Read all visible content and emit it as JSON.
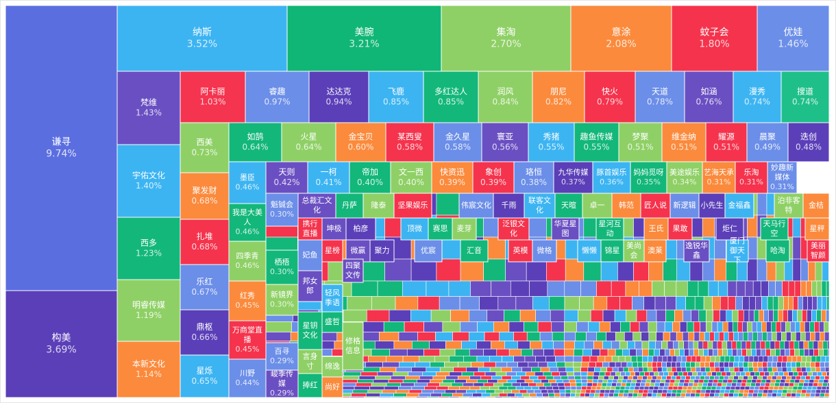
{
  "chart_data": {
    "type": "treemap",
    "tiles": [
      {
        "name": "谦寻",
        "value": 9.74,
        "value_label": "9.74%",
        "color": "#5b6ee0"
      },
      {
        "name": "构美",
        "value": 3.69,
        "value_label": "3.69%",
        "color": "#5b3fb8"
      },
      {
        "name": "纳斯",
        "value": 3.52,
        "value_label": "3.52%",
        "color": "#3cb4f2"
      },
      {
        "name": "美腕",
        "value": 3.21,
        "value_label": "3.21%",
        "color": "#10b675"
      },
      {
        "name": "集淘",
        "value": 2.7,
        "value_label": "2.70%",
        "color": "#8fd066"
      },
      {
        "name": "意涂",
        "value": 2.08,
        "value_label": "2.08%",
        "color": "#fb8a3c"
      },
      {
        "name": "蚊子会",
        "value": 1.8,
        "value_label": "1.80%",
        "color": "#f5334d"
      },
      {
        "name": "优娃",
        "value": 1.46,
        "value_label": "1.46%",
        "color": "#6b8ee8"
      },
      {
        "name": "梵维",
        "value": 1.43,
        "value_label": "1.43%",
        "color": "#6a4fc2"
      },
      {
        "name": "宇佑文化",
        "value": 1.4,
        "value_label": "1.40%",
        "color": "#3cb4f2"
      },
      {
        "name": "西多",
        "value": 1.23,
        "value_label": "1.23%",
        "color": "#13b77a"
      },
      {
        "name": "明睿传媒",
        "value": 1.19,
        "value_label": "1.19%",
        "color": "#8fd066"
      },
      {
        "name": "本新文化",
        "value": 1.14,
        "value_label": "1.14%",
        "color": "#fb8a3c"
      },
      {
        "name": "阿卡丽",
        "value": 1.03,
        "value_label": "1.03%",
        "color": "#f5344f"
      },
      {
        "name": "睿趣",
        "value": 0.97,
        "value_label": "0.97%",
        "color": "#6b8ee8"
      },
      {
        "name": "达达克",
        "value": 0.94,
        "value_label": "0.94%",
        "color": "#5b3fb8"
      },
      {
        "name": "飞鹿",
        "value": 0.85,
        "value_label": "0.85%",
        "color": "#3cb4f2"
      },
      {
        "name": "多红达人",
        "value": 0.85,
        "value_label": "0.85%",
        "color": "#13b77a"
      },
      {
        "name": "润风",
        "value": 0.84,
        "value_label": "0.84%",
        "color": "#8fd066"
      },
      {
        "name": "朋尼",
        "value": 0.82,
        "value_label": "0.82%",
        "color": "#fb8a3c"
      },
      {
        "name": "快火",
        "value": 0.79,
        "value_label": "0.79%",
        "color": "#f5334d"
      },
      {
        "name": "天道",
        "value": 0.78,
        "value_label": "0.78%",
        "color": "#6b8ee8"
      },
      {
        "name": "如涵",
        "value": 0.76,
        "value_label": "0.76%",
        "color": "#6a4fc2"
      },
      {
        "name": "漫秀",
        "value": 0.74,
        "value_label": "0.74%",
        "color": "#3cb4f2"
      },
      {
        "name": "搜道",
        "value": 0.74,
        "value_label": "0.74%",
        "color": "#1fbf8a"
      },
      {
        "name": "西美",
        "value": 0.73,
        "value_label": "0.73%",
        "color": "#8fd066"
      },
      {
        "name": "聚发财",
        "value": 0.68,
        "value_label": "0.68%",
        "color": "#fb8a3c"
      },
      {
        "name": "扎堆",
        "value": 0.68,
        "value_label": "0.68%",
        "color": "#f5334d"
      },
      {
        "name": "乐红",
        "value": 0.67,
        "value_label": "0.67%",
        "color": "#6b8ee8"
      },
      {
        "name": "鼎枢",
        "value": 0.66,
        "value_label": "0.66%",
        "color": "#5b3fb8"
      },
      {
        "name": "星烁",
        "value": 0.65,
        "value_label": "0.65%",
        "color": "#3cb4f2"
      },
      {
        "name": "如鹄",
        "value": 0.64,
        "value_label": "0.64%",
        "color": "#13b77a"
      },
      {
        "name": "火星",
        "value": 0.64,
        "value_label": "0.64%",
        "color": "#8fd066"
      },
      {
        "name": "金宝贝",
        "value": 0.6,
        "value_label": "0.60%",
        "color": "#fb8a3c"
      },
      {
        "name": "某西叟",
        "value": 0.58,
        "value_label": "0.58%",
        "color": "#f5334d"
      },
      {
        "name": "金久星",
        "value": 0.58,
        "value_label": "0.58%",
        "color": "#6b8ee8"
      },
      {
        "name": "寰亚",
        "value": 0.56,
        "value_label": "0.56%",
        "color": "#6a4fc2"
      },
      {
        "name": "秀猪",
        "value": 0.55,
        "value_label": "0.55%",
        "color": "#3cb4f2"
      },
      {
        "name": "趣鱼传媒",
        "value": 0.55,
        "value_label": "0.55%",
        "color": "#13b77a"
      },
      {
        "name": "梦聚",
        "value": 0.51,
        "value_label": "0.51%",
        "color": "#8fd066"
      },
      {
        "name": "维金纳",
        "value": 0.51,
        "value_label": "0.51%",
        "color": "#fb8a3c"
      },
      {
        "name": "耀源",
        "value": 0.51,
        "value_label": "0.51%",
        "color": "#f5334d"
      },
      {
        "name": "晨聚",
        "value": 0.49,
        "value_label": "0.49%",
        "color": "#6b8ee8"
      },
      {
        "name": "迭创",
        "value": 0.48,
        "value_label": "0.48%",
        "color": "#5b3fb8"
      },
      {
        "name": "墨臣",
        "value": 0.46,
        "value_label": "0.46%",
        "color": "#3cb4f2"
      },
      {
        "name": "我是大美人",
        "value": 0.46,
        "value_label": "0.46%",
        "color": "#13b77a"
      },
      {
        "name": "四季青",
        "value": 0.46,
        "value_label": "0.46%",
        "color": "#8fd066"
      },
      {
        "name": "红秀",
        "value": 0.45,
        "value_label": "0.45%",
        "color": "#fb8a3c"
      },
      {
        "name": "万商堂直播",
        "value": 0.45,
        "value_label": "0.45%",
        "color": "#f5334d"
      },
      {
        "name": "川野",
        "value": 0.44,
        "value_label": "0.44%",
        "color": "#6b8ee8"
      },
      {
        "name": "天则",
        "value": 0.42,
        "value_label": "0.42%",
        "color": "#6a4fc2"
      },
      {
        "name": "一柯",
        "value": 0.41,
        "value_label": "0.41%",
        "color": "#3cb4f2"
      },
      {
        "name": "帝加",
        "value": 0.4,
        "value_label": "0.40%",
        "color": "#13b77a"
      },
      {
        "name": "文一西",
        "value": 0.4,
        "value_label": "0.40%",
        "color": "#8fd066"
      },
      {
        "name": "快资迅",
        "value": 0.39,
        "value_label": "0.39%",
        "color": "#fb8a3c"
      },
      {
        "name": "象创",
        "value": 0.39,
        "value_label": "0.39%",
        "color": "#f5334d"
      },
      {
        "name": "珞恒",
        "value": 0.38,
        "value_label": "0.38%",
        "color": "#6b8ee8"
      },
      {
        "name": "九华传媒",
        "value": 0.37,
        "value_label": "0.37%",
        "color": "#5b3fb8"
      },
      {
        "name": "豚首娱乐",
        "value": 0.36,
        "value_label": "0.36%",
        "color": "#3cb4f2"
      },
      {
        "name": "妈妈觅呀",
        "value": 0.35,
        "value_label": "0.35%",
        "color": "#13b77a"
      },
      {
        "name": "美途娱乐",
        "value": 0.34,
        "value_label": "0.34%",
        "color": "#8fd066"
      },
      {
        "name": "艺海天承",
        "value": 0.31,
        "value_label": "0.31%",
        "color": "#fb8a3c"
      },
      {
        "name": "乐淘",
        "value": 0.31,
        "value_label": "0.31%",
        "color": "#f5334d"
      },
      {
        "name": "妙趣新媒体",
        "value": 0.31,
        "value_label": "0.31%",
        "color": "#6b8ee8"
      },
      {
        "name": "魁铖会",
        "value": 0.3,
        "value_label": "0.30%",
        "color": "#6b8ee8"
      },
      {
        "name": "栖梧",
        "value": 0.3,
        "value_label": "0.30%",
        "color": "#13b77a"
      },
      {
        "name": "新镜界",
        "value": 0.3,
        "value_label": "0.30%",
        "color": "#8fd066"
      },
      {
        "name": "百寻",
        "value": 0.29,
        "value_label": "0.29%",
        "color": "#6b8ee8"
      },
      {
        "name": "峻季传媒",
        "value": 0.29,
        "value_label": "0.29%",
        "color": "#6a4fc2"
      },
      {
        "name": "总裁汇文化",
        "color": "#6a4fc2"
      },
      {
        "name": "丹萨",
        "color": "#13b77a"
      },
      {
        "name": "隆泰",
        "color": "#8fd066"
      },
      {
        "name": "坚果娱乐",
        "color": "#f5334d"
      },
      {
        "name": "伟宸文化",
        "color": "#6b8ee8"
      },
      {
        "name": "千雨",
        "color": "#5b3fb8"
      },
      {
        "name": "联客文化",
        "color": "#3cb4f2"
      },
      {
        "name": "天暄",
        "color": "#13b77a"
      },
      {
        "name": "卓一",
        "color": "#8fd066"
      },
      {
        "name": "韩范",
        "color": "#fb8a3c"
      },
      {
        "name": "匠人说",
        "color": "#f5334d"
      },
      {
        "name": "新逻辑",
        "color": "#6b8ee8"
      },
      {
        "name": "小先生",
        "color": "#5b3fb8"
      },
      {
        "name": "金福鑫",
        "color": "#3cb4f2"
      },
      {
        "name": "泊非客特",
        "color": "#8fd066"
      },
      {
        "name": "金桔",
        "color": "#fb8a3c"
      },
      {
        "name": "携行直播",
        "color": "#f5334d"
      },
      {
        "name": "坤极",
        "color": "#6a4fc2"
      },
      {
        "name": "柏彦",
        "color": "#5b3fb8"
      },
      {
        "name": "顶微",
        "color": "#3cb4f2"
      },
      {
        "name": "赛思",
        "color": "#13b77a"
      },
      {
        "name": "麦芽",
        "color": "#8fd066"
      },
      {
        "name": "泛银文化",
        "color": "#f5334d"
      },
      {
        "name": "华夏星图",
        "color": "#6a4fc2"
      },
      {
        "name": "星河互动",
        "color": "#13b77a"
      },
      {
        "name": "王氏",
        "color": "#fb8a3c"
      },
      {
        "name": "果敢",
        "color": "#f5334d"
      },
      {
        "name": "炬仁",
        "color": "#5b3fb8"
      },
      {
        "name": "天马行空",
        "color": "#13b77a"
      },
      {
        "name": "星秤",
        "color": "#fb8a3c"
      },
      {
        "name": "星榜",
        "color": "#f5334d"
      },
      {
        "name": "微赢",
        "color": "#6a4fc2"
      },
      {
        "name": "聚力",
        "color": "#5b3fb8"
      },
      {
        "name": "优宸",
        "color": "#6b8ee8"
      },
      {
        "name": "汇音",
        "color": "#13b77a"
      },
      {
        "name": "英模",
        "color": "#f5334d"
      },
      {
        "name": "微格",
        "color": "#6b8ee8"
      },
      {
        "name": "懒懒",
        "color": "#3cb4f2"
      },
      {
        "name": "锦星",
        "color": "#13b77a"
      },
      {
        "name": "美尚会",
        "color": "#8fd066"
      },
      {
        "name": "澳莱",
        "color": "#fb8a3c"
      },
      {
        "name": "逸锐华鑫",
        "color": "#6a4fc2"
      },
      {
        "name": "厦门御天下",
        "color": "#3cb4f2"
      },
      {
        "name": "哈淘",
        "color": "#13b77a"
      },
      {
        "name": "美丽智颜",
        "color": "#f5334d"
      },
      {
        "name": "妃鱼",
        "color": "#6b8ee8"
      },
      {
        "name": "邦女郎",
        "color": "#6a4fc2"
      },
      {
        "name": "星钥文化",
        "color": "#13b77a"
      },
      {
        "name": "言身寸",
        "color": "#8fd066"
      },
      {
        "name": "捧红",
        "color": "#13b77a"
      },
      {
        "name": "轻风季语",
        "color": "#3cb4f2"
      },
      {
        "name": "盛哲",
        "color": "#13b77a"
      },
      {
        "name": "绵逸",
        "color": "#8fd066"
      },
      {
        "name": "尚好",
        "color": "#fb8a3c"
      },
      {
        "name": "四聚文传",
        "color": "#6a4fc2"
      },
      {
        "name": "修格信息",
        "color": "#8fd066"
      }
    ]
  }
}
